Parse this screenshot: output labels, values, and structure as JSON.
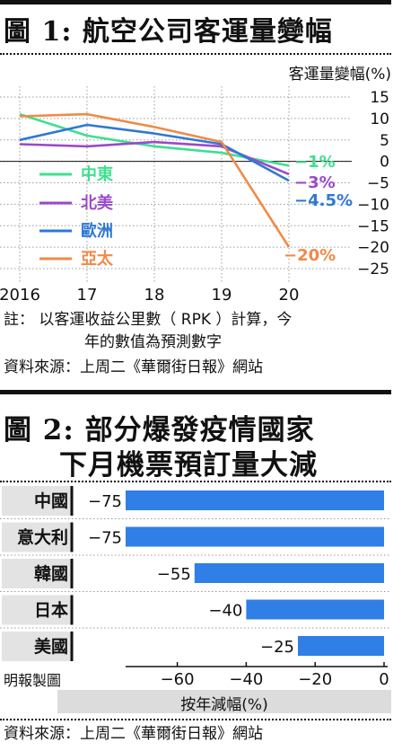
{
  "figure1": {
    "label": "圖 1:",
    "title": "航空公司客運量變幅",
    "unit_label": "客運量變幅(%)",
    "note_line1": "註： 以客運收益公里數（ RPK ）計算，今",
    "note_line2": "年的數值為預測數字",
    "source": "資料來源：上周二《華爾街日報》網站"
  },
  "figure2": {
    "label": "圖 2:",
    "title_line1": "部分爆發疫情國家",
    "title_line2": "下月機票預訂量大減",
    "credit": "明報製圖",
    "source": "資料來源：上周二《華爾街日報》網站"
  },
  "chart_data": [
    {
      "type": "line",
      "title": "航空公司客運量變幅",
      "ylabel": "客運量變幅(%)",
      "x": [
        "2016",
        "17",
        "18",
        "19",
        "20"
      ],
      "ylim": [
        -25,
        15
      ],
      "yticks": [
        "15",
        "10",
        "5",
        "0",
        "−5",
        "−10",
        "−15",
        "−20",
        "−25"
      ],
      "grid": true,
      "legend_position": "left",
      "series": [
        {
          "name": "中東",
          "color": "#3ee08f",
          "values": [
            11,
            6,
            3.5,
            2,
            -1
          ],
          "end_label": "−1%"
        },
        {
          "name": "北美",
          "color": "#9b49c9",
          "values": [
            4,
            3.5,
            4.5,
            3.5,
            -3
          ],
          "end_label": "−3%"
        },
        {
          "name": "歐洲",
          "color": "#2f78d4",
          "values": [
            5,
            8.5,
            6.5,
            4,
            -4.5
          ],
          "end_label": "−4.5%"
        },
        {
          "name": "亞太",
          "color": "#f08a48",
          "values": [
            10.5,
            11,
            8,
            4.5,
            -20
          ],
          "end_label": "−20%"
        }
      ]
    },
    {
      "type": "bar",
      "orientation": "horizontal",
      "xlabel": "按年減幅(%)",
      "xlim": [
        -75,
        0
      ],
      "xticks": [
        "−60",
        "−40",
        "−20",
        "0"
      ],
      "color": "#2f7fe6",
      "categories": [
        "中國",
        "意大利",
        "韓國",
        "日本",
        "美國"
      ],
      "values": [
        -75,
        -75,
        -55,
        -40,
        -25
      ],
      "value_labels": [
        "−75",
        "−75",
        "−55",
        "−40",
        "−25"
      ]
    }
  ]
}
